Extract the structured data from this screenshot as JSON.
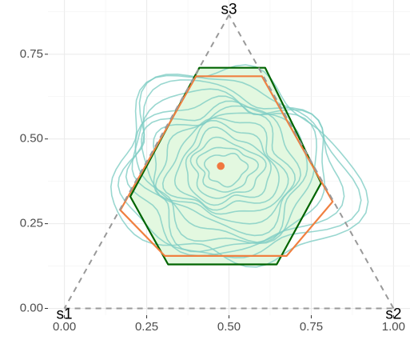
{
  "chart_data": {
    "type": "scatter",
    "title": "",
    "xlabel": "",
    "ylabel": "",
    "xlim": [
      -0.05,
      1.05
    ],
    "ylim": [
      -0.02,
      0.91
    ],
    "xticks": [
      "0.00",
      "0.25",
      "0.50",
      "0.75",
      "1.00"
    ],
    "xtick_values": [
      0,
      0.25,
      0.5,
      0.75,
      1.0
    ],
    "yticks": [
      "0.00",
      "0.25",
      "0.50",
      "0.75"
    ],
    "ytick_values": [
      0,
      0.25,
      0.5,
      0.75
    ],
    "grid": true,
    "simplex": {
      "vertices": [
        {
          "label": "s1",
          "x": 0.0,
          "y": 0.0
        },
        {
          "label": "s2",
          "x": 1.0,
          "y": 0.0
        },
        {
          "label": "s3",
          "x": 0.5,
          "y": 0.866
        }
      ],
      "line_style": "dashed",
      "color": "#999999"
    },
    "hexagons": [
      {
        "color": "#006400",
        "fill": "#e3f8e0",
        "points": [
          [
            0.315,
            0.13
          ],
          [
            0.645,
            0.13
          ],
          [
            0.78,
            0.37
          ],
          [
            0.61,
            0.71
          ],
          [
            0.41,
            0.71
          ],
          [
            0.2,
            0.33
          ]
        ]
      },
      {
        "color": "#f08040",
        "fill": "none",
        "points": [
          [
            0.305,
            0.155
          ],
          [
            0.675,
            0.155
          ],
          [
            0.815,
            0.315
          ],
          [
            0.6,
            0.685
          ],
          [
            0.4,
            0.685
          ],
          [
            0.17,
            0.29
          ]
        ]
      }
    ],
    "contours": {
      "color": "#7fcdc4",
      "center": [
        0.49,
        0.41
      ],
      "levels": 14
    },
    "point": {
      "x": 0.475,
      "y": 0.42,
      "color": "#f07840"
    }
  }
}
